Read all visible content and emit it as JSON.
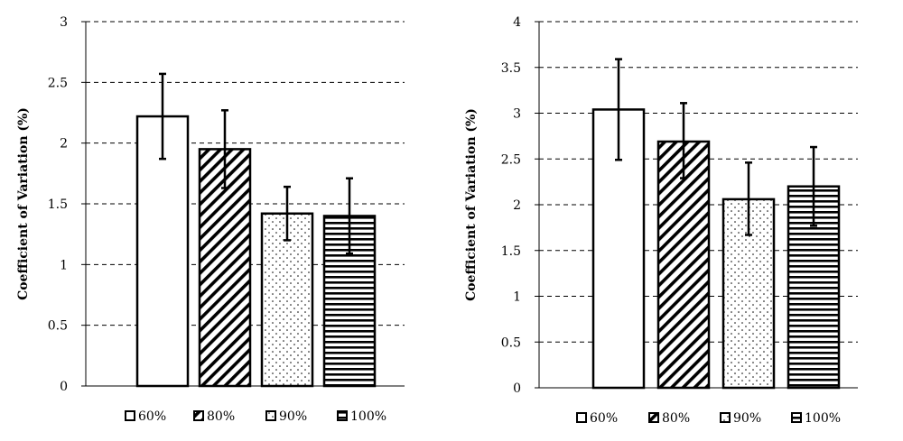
{
  "chart_data": [
    {
      "type": "bar",
      "categories": [
        "60%",
        "80%",
        "90%",
        "100%"
      ],
      "values": [
        2.22,
        1.95,
        1.42,
        1.4
      ],
      "error_low": [
        1.87,
        1.63,
        1.2,
        1.09
      ],
      "error_high": [
        2.57,
        2.27,
        1.64,
        1.71
      ],
      "ylabel": "Coefficient of Variation (%)",
      "ylim": [
        0,
        3
      ],
      "yticks": [
        "0",
        "0.5",
        "1",
        "1.5",
        "2",
        "2.5",
        "3"
      ],
      "tick_values": [
        0,
        0.5,
        1,
        1.5,
        2,
        2.5,
        3
      ],
      "grid": true,
      "legend": "bottom",
      "patterns": [
        "blank-pattern",
        "diagonal-hatch-pattern",
        "dotted-pattern",
        "horizontal-stripe-pattern"
      ]
    },
    {
      "type": "bar",
      "categories": [
        "60%",
        "80%",
        "90%",
        "100%"
      ],
      "values": [
        3.04,
        2.69,
        2.06,
        2.2
      ],
      "error_low": [
        2.49,
        2.29,
        1.67,
        1.77
      ],
      "error_high": [
        3.59,
        3.11,
        2.46,
        2.63
      ],
      "ylabel": "Coefficient of Variation (%)",
      "ylim": [
        0,
        4
      ],
      "yticks": [
        "0",
        "0.5",
        "1",
        "1.5",
        "2",
        "2.5",
        "3",
        "3.5",
        "4"
      ],
      "tick_values": [
        0,
        0.5,
        1,
        1.5,
        2,
        2.5,
        3,
        3.5,
        4
      ],
      "grid": true,
      "legend": "bottom",
      "patterns": [
        "blank-pattern",
        "diagonal-hatch-pattern",
        "dotted-pattern",
        "horizontal-stripe-pattern"
      ]
    }
  ]
}
